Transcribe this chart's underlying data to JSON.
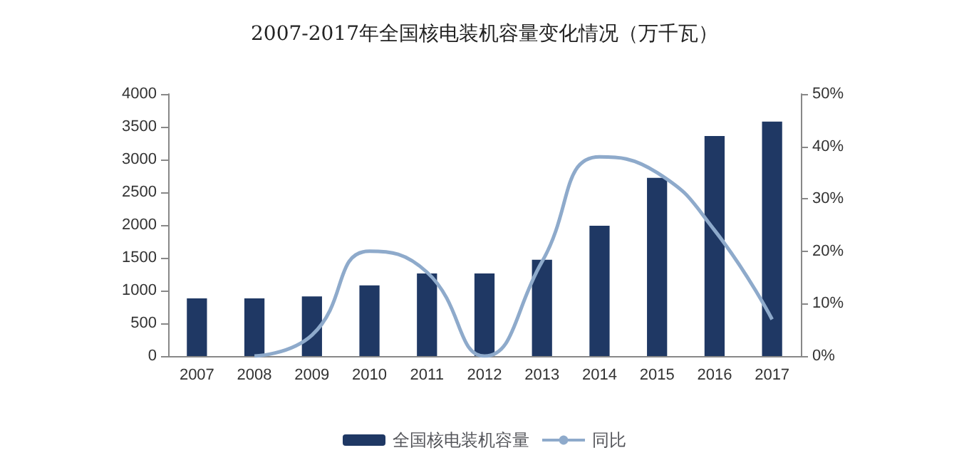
{
  "chart_data": {
    "type": "bar",
    "title": "2007-2017年全国核电装机容量变化情况（万千瓦）",
    "categories": [
      "2007",
      "2008",
      "2009",
      "2010",
      "2011",
      "2012",
      "2013",
      "2014",
      "2015",
      "2016",
      "2017"
    ],
    "series": [
      {
        "name": "全国核电装机容量",
        "color": "#1f3864",
        "values": [
          880,
          880,
          910,
          1080,
          1260,
          1260,
          1470,
          1990,
          2720,
          3360,
          3580
        ]
      },
      {
        "name": "同比",
        "type": "line",
        "axis": "y2",
        "color": "#8eaacb",
        "values": [
          null,
          0,
          4,
          20,
          16,
          0,
          18,
          38,
          35,
          24,
          7
        ]
      }
    ],
    "ylim": [
      0,
      4000
    ],
    "yticks": [
      0,
      500,
      1000,
      1500,
      2000,
      2500,
      3000,
      3500,
      4000
    ],
    "y2lim": [
      0,
      50
    ],
    "y2ticks": [
      {
        "value": 0,
        "label": "0%"
      },
      {
        "value": 10,
        "label": "10%"
      },
      {
        "value": 20,
        "label": "20%"
      },
      {
        "value": 30,
        "label": "30%"
      },
      {
        "value": 40,
        "label": "40%"
      },
      {
        "value": 50,
        "label": "50%"
      }
    ],
    "legend": "bottom",
    "grid": false,
    "marker": "none",
    "line_style": "solid"
  }
}
